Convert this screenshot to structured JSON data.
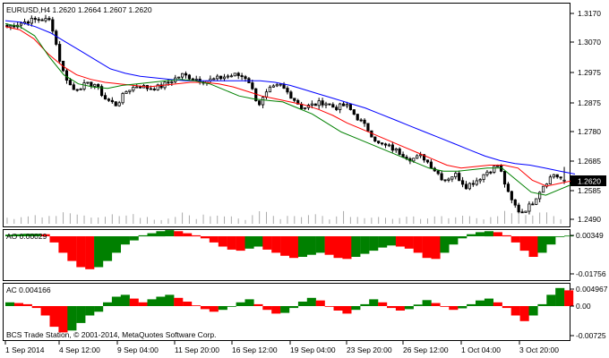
{
  "main_panel": {
    "header": "EURUSD,H4  1.2620 1.2664 1.2607 1.2620",
    "price_axis": [
      "1.3170",
      "1.3070",
      "1.2975",
      "1.2875",
      "1.2780",
      "1.2685",
      "1.2585",
      "1.2490"
    ],
    "current_price": "1.2620"
  },
  "ao_panel": {
    "header": "AO 0.00029",
    "axis": [
      "0.00349",
      "-0.01756"
    ]
  },
  "ac_panel": {
    "header": "AC 0.004166",
    "axis": [
      "0.004967",
      "0.00",
      "-0.00725"
    ]
  },
  "time_axis": [
    "1 Sep 2014",
    "4 Sep 12:00",
    "9 Sep 04:00",
    "11 Sep 20:00",
    "16 Sep 12:00",
    "19 Sep 04:00",
    "23 Sep 20:00",
    "26 Sep 12:00",
    "1 Oct 04:00",
    "3 Oct 20:00"
  ],
  "copyright": "BCS Trade Station, © 2001-2014, MetaQuotes Software Corp.",
  "colors": {
    "background": "#ffffff",
    "candle": "#000000",
    "ma_blue": "#0000ff",
    "ma_red": "#ff0000",
    "ma_green": "#008000",
    "volume": "#aaaaaa",
    "up_bar": "#008000",
    "down_bar": "#ff0000",
    "price_label_bg": "#000000"
  },
  "chart_data": {
    "type": "candlestick",
    "symbol": "EURUSD",
    "timeframe": "H4",
    "last": {
      "open": 1.262,
      "high": 1.2664,
      "low": 1.2607,
      "close": 1.262
    },
    "ylim": [
      1.2475,
      1.3195
    ],
    "close_path": [
      1.313,
      1.314,
      1.315,
      1.3155,
      1.315,
      1.299,
      1.292,
      1.2935,
      1.294,
      1.289,
      1.287,
      1.292,
      1.2935,
      1.2925,
      1.293,
      1.295,
      1.297,
      1.296,
      1.295,
      1.2955,
      1.2965,
      1.297,
      1.296,
      1.287,
      1.292,
      1.2935,
      1.29,
      1.286,
      1.287,
      1.288,
      1.286,
      1.287,
      1.283,
      1.279,
      1.274,
      1.273,
      1.271,
      1.269,
      1.27,
      1.266,
      1.262,
      1.264,
      1.26,
      1.262,
      1.265,
      1.267,
      1.256,
      1.251,
      1.254,
      1.26,
      1.264,
      1.262
    ],
    "ma_blue": [
      1.315,
      1.3145,
      1.313,
      1.311,
      1.308,
      1.305,
      1.302,
      1.299,
      1.2975,
      1.2965,
      1.296,
      1.2955,
      1.295,
      1.295,
      1.295,
      1.295,
      1.295,
      1.295,
      1.2945,
      1.2935,
      1.292,
      1.2905,
      1.289,
      1.2875,
      1.286,
      1.284,
      1.282,
      1.28,
      1.278,
      1.276,
      1.274,
      1.272,
      1.27,
      1.2685,
      1.2675,
      1.267,
      1.266,
      1.265,
      1.264
    ],
    "ma_red": [
      1.313,
      1.312,
      1.309,
      1.304,
      1.3,
      1.297,
      1.2955,
      1.2945,
      1.294,
      1.2935,
      1.293,
      1.2935,
      1.294,
      1.2945,
      1.2945,
      1.294,
      1.293,
      1.2915,
      1.29,
      1.289,
      1.288,
      1.287,
      1.2855,
      1.2835,
      1.281,
      1.279,
      1.277,
      1.275,
      1.273,
      1.271,
      1.269,
      1.267,
      1.266,
      1.2665,
      1.267,
      1.267,
      1.266,
      1.262,
      1.26,
      1.261,
      1.262
    ],
    "ma_green": [
      1.314,
      1.313,
      1.31,
      1.303,
      1.297,
      1.294,
      1.293,
      1.2925,
      1.2935,
      1.294,
      1.2945,
      1.295,
      1.2955,
      1.295,
      1.294,
      1.292,
      1.29,
      1.289,
      1.2885,
      1.288,
      1.286,
      1.284,
      1.281,
      1.278,
      1.276,
      1.274,
      1.272,
      1.27,
      1.268,
      1.266,
      1.265,
      1.265,
      1.2655,
      1.266,
      1.266,
      1.262,
      1.258,
      1.257,
      1.259,
      1.261
    ],
    "ao_values": [
      0.0008,
      0.001,
      0.0012,
      0.0012,
      0.001,
      -0.003,
      -0.008,
      -0.012,
      -0.015,
      -0.016,
      -0.015,
      -0.012,
      -0.008,
      -0.004,
      -0.002,
      0.0005,
      0.0015,
      0.0025,
      0.003,
      0.0025,
      0.0015,
      0.0005,
      -0.001,
      -0.003,
      -0.005,
      -0.0065,
      -0.007,
      -0.006,
      -0.005,
      -0.0065,
      -0.008,
      -0.0095,
      -0.0105,
      -0.01,
      -0.009,
      -0.008,
      -0.009,
      -0.0105,
      -0.011,
      -0.01,
      -0.0085,
      -0.007,
      -0.0055,
      -0.0045,
      -0.005,
      -0.006,
      -0.008,
      -0.0105,
      -0.011,
      -0.008,
      -0.004,
      -0.001,
      0.001,
      0.002,
      0.0025,
      0.002,
      0.0005,
      -0.003,
      -0.007,
      -0.01,
      -0.008,
      -0.004,
      0.0,
      0.0003
    ],
    "ac_values": [
      0.001,
      0.0008,
      0.0005,
      -0.0005,
      -0.0025,
      -0.0055,
      -0.007,
      -0.0065,
      -0.0045,
      -0.0025,
      -0.0015,
      0.001,
      0.0025,
      0.003,
      0.002,
      0.001,
      0.0018,
      0.0025,
      0.003,
      0.0022,
      0.0012,
      0.0002,
      -0.0008,
      -0.0015,
      -0.001,
      0.0,
      0.001,
      0.0018,
      0.0005,
      -0.001,
      -0.002,
      -0.0018,
      -0.0005,
      0.0012,
      0.0022,
      0.0015,
      0.0,
      -0.0012,
      -0.002,
      -0.001,
      0.0005,
      0.0018,
      0.001,
      -0.0005,
      -0.0012,
      -0.0008,
      0.0004,
      0.0016,
      0.0008,
      -0.0002,
      -0.001,
      -0.0006,
      0.0005,
      0.0015,
      0.002,
      0.001,
      -0.0005,
      -0.0025,
      -0.004,
      -0.0025,
      0.0005,
      0.003,
      0.0048,
      0.0042
    ],
    "volume_rel": [
      0.3,
      0.2,
      0.5,
      0.3,
      0.4,
      0.9,
      0.6,
      0.4,
      0.3,
      0.3,
      0.5,
      0.6,
      0.4,
      0.3,
      0.2,
      0.4,
      0.5,
      0.3,
      0.6,
      0.4,
      0.3,
      0.4,
      0.2,
      0.7,
      0.5,
      0.3,
      0.4,
      0.3,
      0.5,
      0.4,
      0.3,
      0.6,
      0.4,
      0.3,
      0.5,
      0.3,
      0.4,
      0.6,
      0.3,
      0.4,
      0.5,
      0.3,
      0.7,
      0.4,
      0.3,
      0.5,
      0.9,
      0.5,
      0.3,
      0.8,
      0.4,
      0.3
    ]
  }
}
